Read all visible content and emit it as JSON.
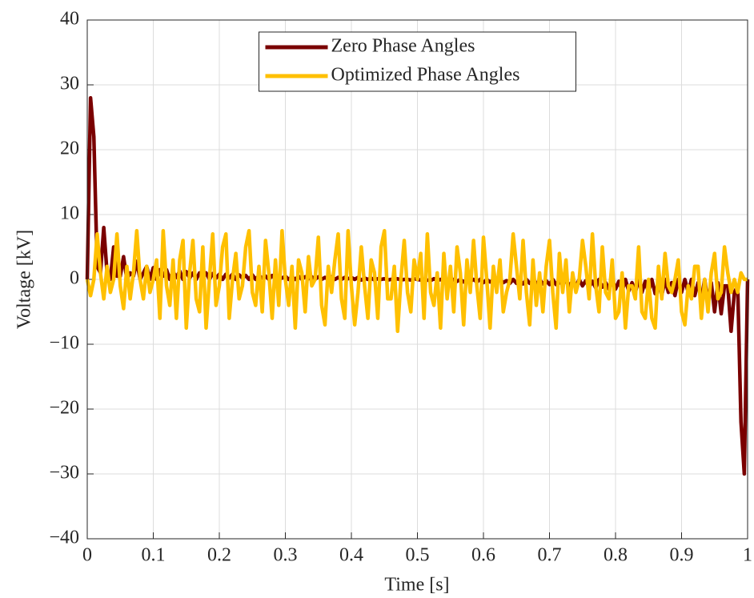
{
  "chart_data": {
    "type": "line",
    "xlabel": "Time [s]",
    "ylabel": "Voltage [kV]",
    "xlim": [
      0,
      1
    ],
    "ylim": [
      -40,
      40
    ],
    "xticks": [
      0,
      0.1,
      0.2,
      0.3,
      0.4,
      0.5,
      0.6,
      0.7,
      0.8,
      0.9,
      1
    ],
    "yticks": [
      {
        "value": -40,
        "label": "−40"
      },
      {
        "value": -30,
        "label": "−30"
      },
      {
        "value": -20,
        "label": "−20"
      },
      {
        "value": -10,
        "label": "−10"
      },
      0,
      10,
      20,
      30,
      40
    ],
    "grid": true,
    "legend": "north",
    "x": [
      0,
      0.005,
      0.01,
      0.015,
      0.02,
      0.025,
      0.03,
      0.035,
      0.04,
      0.045,
      0.05,
      0.055,
      0.06,
      0.065,
      0.07,
      0.075,
      0.08,
      0.085,
      0.09,
      0.095,
      0.1,
      0.105,
      0.11,
      0.115,
      0.12,
      0.125,
      0.13,
      0.135,
      0.14,
      0.145,
      0.15,
      0.155,
      0.16,
      0.165,
      0.17,
      0.175,
      0.18,
      0.185,
      0.19,
      0.195,
      0.2,
      0.205,
      0.21,
      0.215,
      0.22,
      0.225,
      0.23,
      0.235,
      0.24,
      0.245,
      0.25,
      0.255,
      0.26,
      0.265,
      0.27,
      0.275,
      0.28,
      0.285,
      0.29,
      0.295,
      0.3,
      0.305,
      0.31,
      0.315,
      0.32,
      0.325,
      0.33,
      0.335,
      0.34,
      0.345,
      0.35,
      0.355,
      0.36,
      0.365,
      0.37,
      0.375,
      0.38,
      0.385,
      0.39,
      0.395,
      0.4,
      0.405,
      0.41,
      0.415,
      0.42,
      0.425,
      0.43,
      0.435,
      0.44,
      0.445,
      0.45,
      0.455,
      0.46,
      0.465,
      0.47,
      0.475,
      0.48,
      0.485,
      0.49,
      0.495,
      0.5,
      0.505,
      0.51,
      0.515,
      0.52,
      0.525,
      0.53,
      0.535,
      0.54,
      0.545,
      0.55,
      0.555,
      0.56,
      0.565,
      0.57,
      0.575,
      0.58,
      0.585,
      0.59,
      0.595,
      0.6,
      0.605,
      0.61,
      0.615,
      0.62,
      0.625,
      0.63,
      0.635,
      0.64,
      0.645,
      0.65,
      0.655,
      0.66,
      0.665,
      0.67,
      0.675,
      0.68,
      0.685,
      0.69,
      0.695,
      0.7,
      0.705,
      0.71,
      0.715,
      0.72,
      0.725,
      0.73,
      0.735,
      0.74,
      0.745,
      0.75,
      0.755,
      0.76,
      0.765,
      0.77,
      0.775,
      0.78,
      0.785,
      0.79,
      0.795,
      0.8,
      0.805,
      0.81,
      0.815,
      0.82,
      0.825,
      0.83,
      0.835,
      0.84,
      0.845,
      0.85,
      0.855,
      0.86,
      0.865,
      0.87,
      0.875,
      0.88,
      0.885,
      0.89,
      0.895,
      0.9,
      0.905,
      0.91,
      0.915,
      0.92,
      0.925,
      0.93,
      0.935,
      0.94,
      0.945,
      0.95,
      0.955,
      0.96,
      0.965,
      0.97,
      0.975,
      0.98,
      0.985,
      0.99,
      0.995,
      1
    ],
    "series": [
      {
        "name": "Zero Phase Angles",
        "color": "#7a0000",
        "values": [
          0,
          28,
          22,
          2,
          1,
          8,
          1,
          0,
          5,
          0.5,
          0.5,
          3.5,
          0,
          1,
          0.5,
          2.8,
          0,
          1,
          2,
          0,
          1.8,
          0,
          1.5,
          0.5,
          1.5,
          0,
          1.2,
          0.3,
          1.3,
          0,
          1.2,
          0.2,
          1,
          0,
          1,
          0.3,
          1,
          0,
          0.9,
          0.2,
          0.8,
          0,
          0.8,
          0.2,
          0.8,
          0,
          0.7,
          0.2,
          0.6,
          0,
          0.7,
          0,
          0.6,
          0.2,
          0.5,
          0,
          0.6,
          0,
          0.5,
          0.2,
          0.5,
          0,
          0.4,
          0,
          0.5,
          0,
          0.4,
          0.1,
          0.4,
          0,
          0.4,
          0,
          0.3,
          0,
          0.4,
          0,
          0.3,
          0,
          0.3,
          0.1,
          0.3,
          0,
          0.3,
          -0.1,
          0.2,
          0,
          0.2,
          -0.1,
          0.1,
          0,
          0.1,
          -0.1,
          0,
          0,
          0.1,
          -0.1,
          0,
          0,
          -0.1,
          0.1,
          0,
          -0.1,
          0,
          -0.1,
          -0.2,
          0.1,
          -0.2,
          0,
          -0.3,
          0,
          -0.3,
          0,
          -0.3,
          0,
          -0.4,
          0,
          -0.3,
          0,
          -0.4,
          0,
          -0.5,
          0,
          -0.4,
          -0.1,
          -0.5,
          0,
          -0.5,
          -0.2,
          -0.6,
          0,
          -0.6,
          -0.2,
          -0.7,
          0,
          -0.6,
          -0.2,
          -0.8,
          0,
          -0.7,
          -0.2,
          -0.8,
          0,
          -0.8,
          -0.2,
          -0.9,
          0,
          -1,
          -0.3,
          -1,
          0,
          -1,
          -0.2,
          -1.2,
          -0.3,
          -1.3,
          0,
          -1.2,
          -0.5,
          -1.5,
          0,
          -1.5,
          -0.3,
          -1.8,
          0,
          -1.8,
          -0.5,
          -2,
          0,
          -2,
          -0.3,
          -2,
          0,
          -2.2,
          -0.5,
          -2.5,
          0,
          -2,
          -0.5,
          -2.5,
          0,
          -2,
          0,
          -2,
          0,
          -2.5,
          -0.5,
          -3,
          0,
          -3.5,
          -0.5,
          -5,
          -0.5,
          -5.3,
          -1,
          -1,
          -8,
          -2,
          -1,
          -22,
          -30,
          0
        ]
      },
      {
        "name": "Optimized Phase Angles",
        "color": "#ffc000",
        "values": [
          0,
          -2.5,
          0,
          7,
          1,
          -3,
          2,
          -2,
          0,
          7,
          -1,
          -4.5,
          2,
          -3,
          1,
          7.5,
          0,
          -3,
          2,
          -2,
          0,
          3,
          -6,
          7.5,
          -1,
          -4,
          3,
          -6,
          3,
          6,
          -7.5,
          1,
          6,
          -3,
          -5,
          5,
          -7.5,
          0,
          7,
          -4,
          -1,
          5,
          7,
          -6,
          0,
          4,
          -3,
          -1,
          5,
          7.5,
          -2,
          -4,
          2,
          -5,
          6,
          1,
          -6,
          3,
          -4,
          7.5,
          0,
          -4,
          2,
          -7.5,
          3,
          1,
          -5,
          3.5,
          -1,
          0,
          6.5,
          -4,
          -7,
          2,
          -2,
          3,
          7,
          -3,
          -6,
          7.5,
          -1,
          -7,
          -2,
          5,
          -1,
          -6,
          3,
          1,
          -6,
          5,
          7.5,
          -3,
          -3,
          2,
          -8,
          0,
          6,
          -2,
          -5,
          3,
          0,
          4,
          -6,
          7,
          -2,
          -4,
          1,
          -7.5,
          4,
          -3,
          2,
          -5,
          5,
          1,
          -7,
          3,
          -2,
          6,
          -1,
          -6,
          6.5,
          0,
          -7.5,
          2,
          -2,
          3,
          -5,
          -2,
          0,
          7,
          2,
          -3,
          6,
          -2,
          -7,
          3,
          -4,
          1,
          -5,
          2,
          6,
          -2,
          -7.5,
          4,
          -2,
          3,
          -5,
          1,
          -2,
          0,
          6,
          2,
          -3,
          7,
          -1,
          -5,
          5,
          -2,
          -3,
          3,
          -6,
          -5,
          1,
          -7.5,
          -1,
          -1,
          -3,
          5,
          -5,
          -6,
          0,
          -6,
          -7.5,
          2,
          -3,
          4,
          -1,
          -2,
          0,
          3,
          -5,
          -7,
          -1,
          -3,
          2,
          2,
          -6,
          0,
          -5,
          1,
          4,
          -3,
          -2,
          5,
          1,
          -2,
          0,
          -2,
          1,
          0,
          0
        ]
      }
    ]
  }
}
